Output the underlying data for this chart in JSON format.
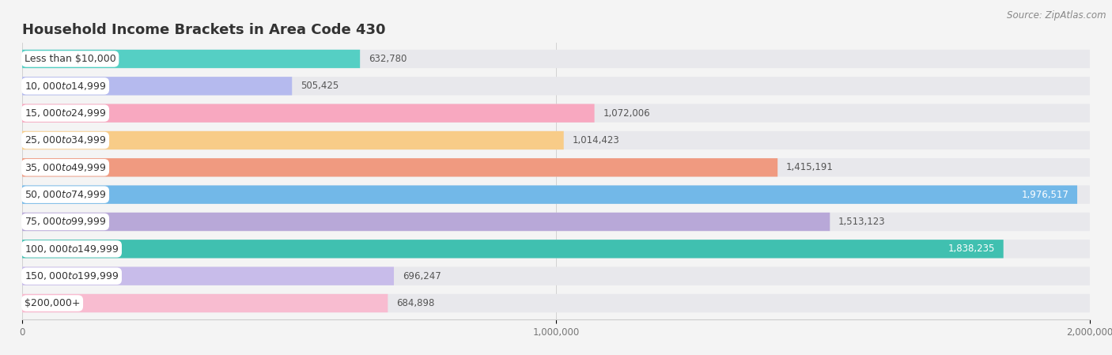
{
  "title": "Household Income Brackets in Area Code 430",
  "source": "Source: ZipAtlas.com",
  "categories": [
    "Less than $10,000",
    "$10,000 to $14,999",
    "$15,000 to $24,999",
    "$25,000 to $34,999",
    "$35,000 to $49,999",
    "$50,000 to $74,999",
    "$75,000 to $99,999",
    "$100,000 to $149,999",
    "$150,000 to $199,999",
    "$200,000+"
  ],
  "values": [
    632780,
    505425,
    1072006,
    1014423,
    1415191,
    1976517,
    1513123,
    1838235,
    696247,
    684898
  ],
  "colors": [
    "#55cfc4",
    "#b5baee",
    "#f8a8c0",
    "#f8cc88",
    "#f09a80",
    "#72b8e8",
    "#b8a8d8",
    "#40c0b0",
    "#c8bcea",
    "#f8bcd0"
  ],
  "xlim": [
    0,
    2000000
  ],
  "xtick_labels": [
    "0",
    "1,000,000",
    "2,000,000"
  ],
  "background_color": "#f4f4f4",
  "bar_bg_color": "#e8e8ec",
  "bar_label_bg": "#ffffff",
  "title_fontsize": 13,
  "label_fontsize": 9,
  "value_fontsize": 8.5,
  "source_fontsize": 8.5,
  "value_threshold": 1700000
}
